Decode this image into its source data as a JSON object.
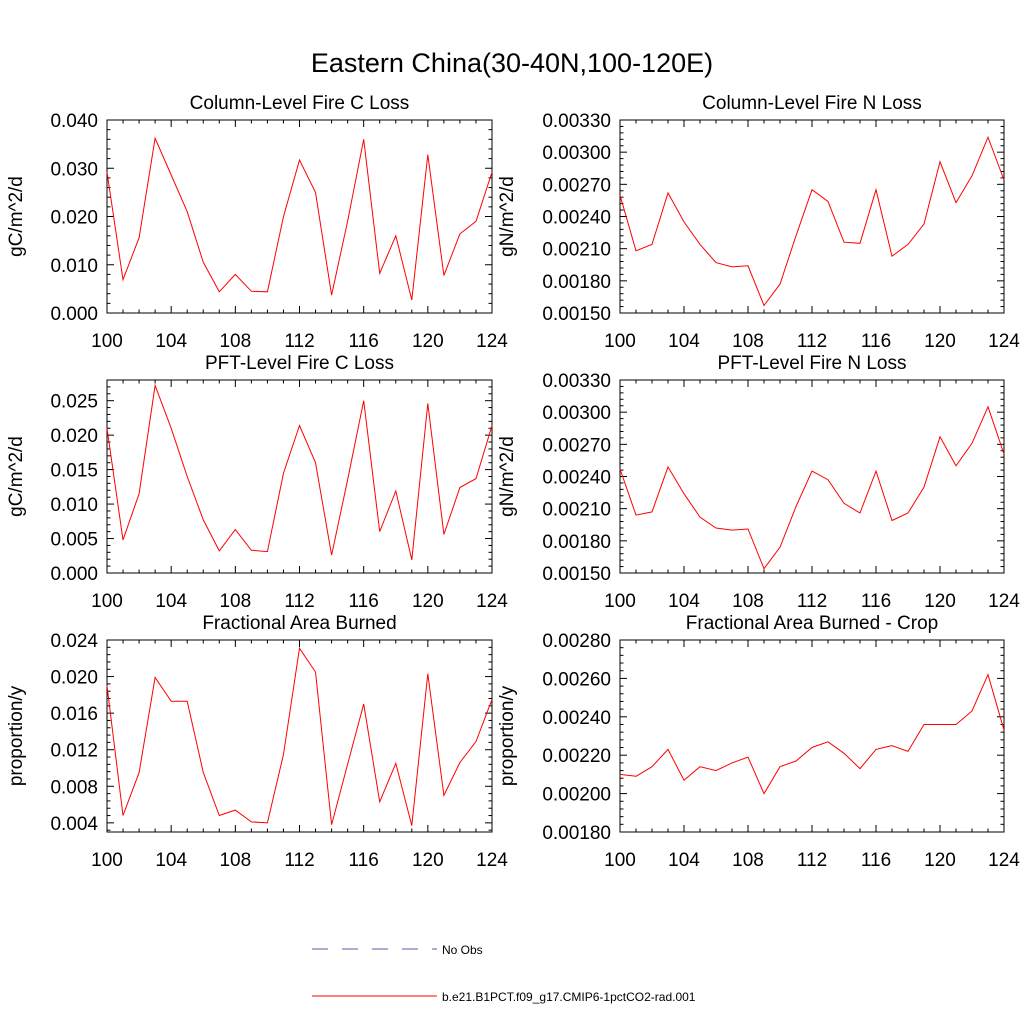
{
  "page": {
    "title": "Eastern China(30-40N,100-120E)"
  },
  "legend": {
    "items": [
      {
        "label": "No Obs",
        "color": "#5a5aa6",
        "dash": true
      },
      {
        "label": "b.e21.B1PCT.f09_g17.CMIP6-1pctCO2-rad.001",
        "color": "#ff0000",
        "dash": false
      }
    ]
  },
  "chart_data": [
    {
      "type": "line",
      "title": "Column-Level Fire C Loss",
      "ylabel": "gC/m^2/d",
      "xlim": [
        100,
        124
      ],
      "ylim": [
        0.0,
        0.04
      ],
      "xticks": [
        "100",
        "104",
        "108",
        "112",
        "116",
        "120",
        "124"
      ],
      "yticks": [
        "0.000",
        "0.010",
        "0.020",
        "0.030",
        "0.040"
      ],
      "x": [
        100,
        101,
        102,
        103,
        104,
        105,
        106,
        107,
        108,
        109,
        110,
        111,
        112,
        113,
        114,
        115,
        116,
        117,
        118,
        119,
        120,
        121,
        122,
        123,
        124
      ],
      "series": [
        {
          "color": "#ff0000",
          "values": [
            0.0292,
            0.0069,
            0.0156,
            0.0362,
            0.0286,
            0.021,
            0.0105,
            0.0044,
            0.008,
            0.0045,
            0.0044,
            0.02,
            0.0317,
            0.025,
            0.0037,
            0.019,
            0.036,
            0.0082,
            0.016,
            0.0027,
            0.0328,
            0.0078,
            0.0164,
            0.019,
            0.0292
          ]
        }
      ]
    },
    {
      "type": "line",
      "title": "Column-Level Fire N Loss",
      "ylabel": "gN/m^2/d",
      "xlim": [
        100,
        124
      ],
      "ylim": [
        0.0015,
        0.0033
      ],
      "xticks": [
        "100",
        "104",
        "108",
        "112",
        "116",
        "120",
        "124"
      ],
      "yticks": [
        "0.00150",
        "0.00180",
        "0.00210",
        "0.00240",
        "0.00270",
        "0.00300",
        "0.00330"
      ],
      "x": [
        100,
        101,
        102,
        103,
        104,
        105,
        106,
        107,
        108,
        109,
        110,
        111,
        112,
        113,
        114,
        115,
        116,
        117,
        118,
        119,
        120,
        121,
        122,
        123,
        124
      ],
      "series": [
        {
          "color": "#ff0000",
          "values": [
            0.0026,
            0.00208,
            0.00214,
            0.00262,
            0.00235,
            0.00214,
            0.00197,
            0.00193,
            0.00194,
            0.00157,
            0.00177,
            0.00222,
            0.00265,
            0.00254,
            0.00216,
            0.00215,
            0.00265,
            0.00203,
            0.00214,
            0.00233,
            0.00291,
            0.00253,
            0.00278,
            0.00314,
            0.00274
          ]
        }
      ]
    },
    {
      "type": "line",
      "title": "PFT-Level Fire C Loss",
      "ylabel": "gC/m^2/d",
      "xlim": [
        100,
        124
      ],
      "ylim": [
        0.0,
        0.028
      ],
      "xticks": [
        "100",
        "104",
        "108",
        "112",
        "116",
        "120",
        "124"
      ],
      "yticks": [
        "0.000",
        "0.005",
        "0.010",
        "0.015",
        "0.020",
        "0.025"
      ],
      "x": [
        100,
        101,
        102,
        103,
        104,
        105,
        106,
        107,
        108,
        109,
        110,
        111,
        112,
        113,
        114,
        115,
        116,
        117,
        118,
        119,
        120,
        121,
        122,
        123,
        124
      ],
      "series": [
        {
          "color": "#ff0000",
          "values": [
            0.021,
            0.0048,
            0.0115,
            0.0272,
            0.021,
            0.014,
            0.0077,
            0.0032,
            0.0063,
            0.0033,
            0.0031,
            0.0145,
            0.0214,
            0.016,
            0.0026,
            0.0135,
            0.025,
            0.006,
            0.0119,
            0.0019,
            0.0246,
            0.0056,
            0.0124,
            0.0137,
            0.0214
          ]
        }
      ]
    },
    {
      "type": "line",
      "title": "PFT-Level Fire N Loss",
      "ylabel": "gN/m^2/d",
      "xlim": [
        100,
        124
      ],
      "ylim": [
        0.0015,
        0.0033
      ],
      "xticks": [
        "100",
        "104",
        "108",
        "112",
        "116",
        "120",
        "124"
      ],
      "yticks": [
        "0.00150",
        "0.00180",
        "0.00210",
        "0.00240",
        "0.00270",
        "0.00300",
        "0.00330"
      ],
      "x": [
        100,
        101,
        102,
        103,
        104,
        105,
        106,
        107,
        108,
        109,
        110,
        111,
        112,
        113,
        114,
        115,
        116,
        117,
        118,
        119,
        120,
        121,
        122,
        123,
        124
      ],
      "series": [
        {
          "color": "#ff0000",
          "values": [
            0.00247,
            0.00204,
            0.00207,
            0.00249,
            0.00224,
            0.00202,
            0.00192,
            0.0019,
            0.00191,
            0.00154,
            0.00174,
            0.00212,
            0.00245,
            0.00237,
            0.00215,
            0.00206,
            0.00245,
            0.00199,
            0.00206,
            0.0023,
            0.00277,
            0.0025,
            0.00271,
            0.00305,
            0.00261
          ]
        }
      ]
    },
    {
      "type": "line",
      "title": "Fractional Area Burned",
      "ylabel": "proportion/y",
      "xlim": [
        100,
        124
      ],
      "ylim": [
        0.003,
        0.024
      ],
      "xticks": [
        "100",
        "104",
        "108",
        "112",
        "116",
        "120",
        "124"
      ],
      "yticks": [
        "0.004",
        "0.008",
        "0.012",
        "0.016",
        "0.020",
        "0.024"
      ],
      "x": [
        100,
        101,
        102,
        103,
        104,
        105,
        106,
        107,
        108,
        109,
        110,
        111,
        112,
        113,
        114,
        115,
        116,
        117,
        118,
        119,
        120,
        121,
        122,
        123,
        124
      ],
      "series": [
        {
          "color": "#ff0000",
          "values": [
            0.019,
            0.0048,
            0.0095,
            0.0199,
            0.0173,
            0.0173,
            0.0095,
            0.0048,
            0.0054,
            0.0041,
            0.004,
            0.0115,
            0.0231,
            0.0205,
            0.0038,
            0.0104,
            0.017,
            0.0063,
            0.0105,
            0.0037,
            0.0203,
            0.007,
            0.0106,
            0.0129,
            0.0175
          ]
        }
      ]
    },
    {
      "type": "line",
      "title": "Fractional Area Burned - Crop",
      "ylabel": "proportion/y",
      "xlim": [
        100,
        124
      ],
      "ylim": [
        0.0018,
        0.0028
      ],
      "xticks": [
        "100",
        "104",
        "108",
        "112",
        "116",
        "120",
        "124"
      ],
      "yticks": [
        "0.00180",
        "0.00200",
        "0.00220",
        "0.00240",
        "0.00260",
        "0.00280"
      ],
      "x": [
        100,
        101,
        102,
        103,
        104,
        105,
        106,
        107,
        108,
        109,
        110,
        111,
        112,
        113,
        114,
        115,
        116,
        117,
        118,
        119,
        120,
        121,
        122,
        123,
        124
      ],
      "series": [
        {
          "color": "#ff0000",
          "values": [
            0.0021,
            0.00209,
            0.00214,
            0.00223,
            0.00207,
            0.00214,
            0.00212,
            0.00216,
            0.00219,
            0.002,
            0.00214,
            0.00217,
            0.00224,
            0.00227,
            0.00221,
            0.00213,
            0.00223,
            0.00225,
            0.00222,
            0.00236,
            0.00236,
            0.00236,
            0.00243,
            0.00262,
            0.00233
          ]
        }
      ]
    }
  ]
}
